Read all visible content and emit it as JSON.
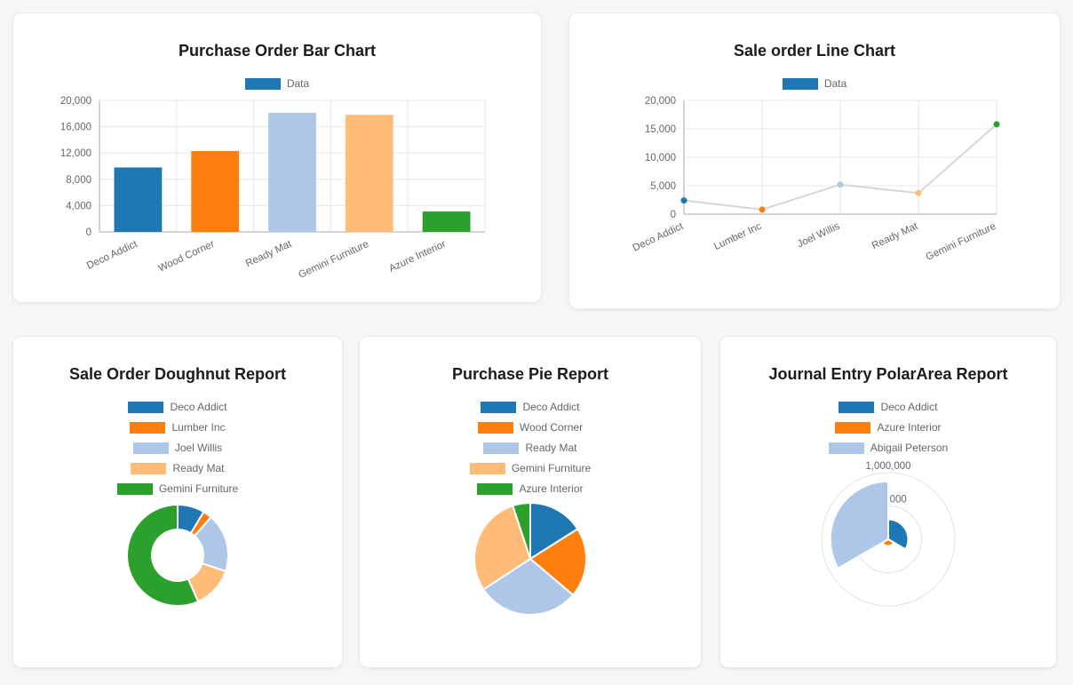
{
  "palette": {
    "blue": "#1f77b4",
    "orange": "#ff7f0e",
    "light_blue": "#aec7e8",
    "light_orange": "#ffbb78",
    "green": "#2ca02c",
    "grid": "#e8e8e8",
    "axis": "#ababab",
    "text_muted": "#666666"
  },
  "chart_data": [
    {
      "type": "bar",
      "title": "Purchase Order Bar Chart",
      "legend": [
        {
          "label": "Data",
          "color": "#1f77b4"
        }
      ],
      "legend_position": "top",
      "categories": [
        "Deco Addict",
        "Wood Corner",
        "Ready Mat",
        "Gemini Furniture",
        "Azure Interior"
      ],
      "values": [
        9800,
        12300,
        18100,
        17800,
        3100
      ],
      "colors": [
        "#1f77b4",
        "#ff7f0e",
        "#aec7e8",
        "#ffbb78",
        "#2ca02c"
      ],
      "ylim": [
        0,
        20000
      ],
      "ytick_labels": [
        "0",
        "4,000",
        "8,000",
        "12,000",
        "16,000",
        "20,000"
      ],
      "grid": true,
      "xlabel": "",
      "ylabel": ""
    },
    {
      "type": "line",
      "title": "Sale order Line Chart",
      "legend": [
        {
          "label": "Data",
          "color": "#1f77b4"
        }
      ],
      "legend_position": "top",
      "categories": [
        "Deco Addict",
        "Lumber Inc",
        "Joel Willis",
        "Ready Mat",
        "Gemini Furniture"
      ],
      "values": [
        2400,
        800,
        5200,
        3700,
        15800
      ],
      "point_colors": [
        "#1f77b4",
        "#ff7f0e",
        "#aec7e8",
        "#ffbb78",
        "#2ca02c"
      ],
      "line_color": "#d6d6d6",
      "ylim": [
        0,
        20000
      ],
      "ytick_labels": [
        "0",
        "5,000",
        "10,000",
        "15,000",
        "20,000"
      ],
      "grid": true,
      "xlabel": "",
      "ylabel": ""
    },
    {
      "type": "doughnut",
      "title": "Sale Order Doughnut Report",
      "labels": [
        "Deco Addict",
        "Lumber Inc",
        "Joel Willis",
        "Ready Mat",
        "Gemini Furniture"
      ],
      "values": [
        2400,
        800,
        5200,
        3700,
        15800
      ],
      "colors": [
        "#1f77b4",
        "#ff7f0e",
        "#aec7e8",
        "#ffbb78",
        "#2ca02c"
      ],
      "legend_position": "top"
    },
    {
      "type": "pie",
      "title": "Purchase Pie Report",
      "labels": [
        "Deco Addict",
        "Wood Corner",
        "Ready Mat",
        "Gemini Furniture",
        "Azure Interior"
      ],
      "values": [
        9800,
        12300,
        18100,
        17800,
        3100
      ],
      "colors": [
        "#1f77b4",
        "#ff7f0e",
        "#aec7e8",
        "#ffbb78",
        "#2ca02c"
      ],
      "legend_position": "top"
    },
    {
      "type": "polarArea",
      "title": "Journal Entry PolarArea Report",
      "labels": [
        "Deco Addict",
        "Azure Interior",
        "Abigail Peterson"
      ],
      "values": [
        300000,
        100000,
        870000
      ],
      "colors": [
        "#1f77b4",
        "#ff7f0e",
        "#aec7e8"
      ],
      "rlim": [
        0,
        1000000
      ],
      "rtick_labels": [
        "500,000",
        "1,000,000"
      ],
      "legend_position": "top"
    }
  ]
}
